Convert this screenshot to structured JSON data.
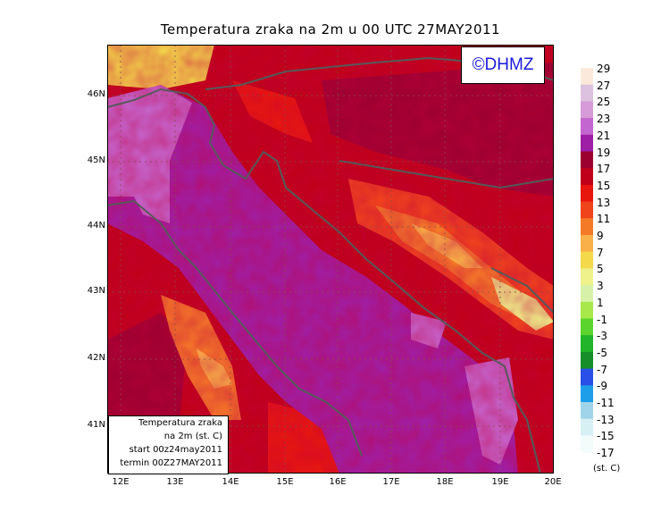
{
  "title": "Temperatura zraka na 2m u 00 UTC 27MAY2011",
  "logo": "©DHMZ",
  "legend": {
    "line1": "Temperatura zraka",
    "line2": "na 2m (st. C)",
    "line3": "start 00z24may2011",
    "line4": "termin 00Z27MAY2011"
  },
  "lat_labels": [
    "46N",
    "45N",
    "44N",
    "43N",
    "42N",
    "41N"
  ],
  "lon_labels": [
    "12E",
    "13E",
    "14E",
    "15E",
    "16E",
    "17E",
    "18E",
    "19E",
    "20E"
  ],
  "colorbar": {
    "labels": [
      "29",
      "27",
      "25",
      "23",
      "21",
      "19",
      "17",
      "15",
      "13",
      "11",
      "9",
      "7",
      "5",
      "3",
      "1",
      "-1",
      "-3",
      "-5",
      "-7",
      "-9",
      "-11",
      "-13",
      "-15",
      "-17"
    ],
    "colors": [
      "#fbeadb",
      "#dcc2de",
      "#d79bd9",
      "#c466cf",
      "#9e1fa6",
      "#9b0030",
      "#bf0018",
      "#e8170d",
      "#f0441c",
      "#f57a28",
      "#f9b048",
      "#f4d94a",
      "#eff28a",
      "#d7f2a8",
      "#a8e84a",
      "#5cd42e",
      "#20b52a",
      "#168f2a",
      "#2a4fe8",
      "#1e9ee8",
      "#9fd4ea",
      "#d6f0f4",
      "#f4fbfb"
    ],
    "units": "(st. C)"
  }
}
